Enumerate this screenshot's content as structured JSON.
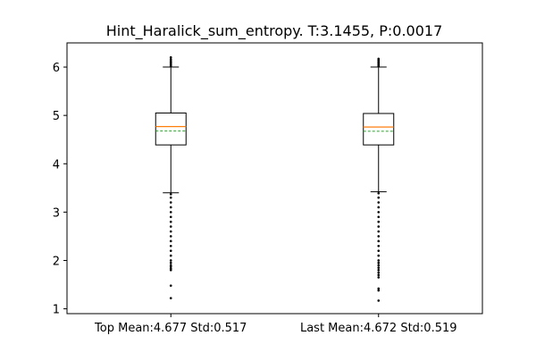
{
  "chart_data": {
    "type": "box",
    "title": "Hint_Haralick_sum_entropy. T:3.1455, P:0.0017",
    "xlabel": "",
    "ylabel": "",
    "ylim": [
      0.9,
      6.5
    ],
    "yticks": [
      1,
      2,
      3,
      4,
      5,
      6
    ],
    "grid": false,
    "categories": [
      "Top Mean:4.677 Std:0.517",
      "Last Mean:4.672 Std:0.519"
    ],
    "series": [
      {
        "whisker_low": 3.4,
        "q1": 4.39,
        "median": 4.77,
        "mean": 4.677,
        "q3": 5.05,
        "whisker_high": 6.0,
        "outliers_high": [
          6.02,
          6.05,
          6.08,
          6.1,
          6.13,
          6.16,
          6.2
        ],
        "outliers_low": [
          3.37,
          3.3,
          3.2,
          3.1,
          3.0,
          2.9,
          2.8,
          2.7,
          2.6,
          2.5,
          2.4,
          2.3,
          2.2,
          2.1,
          2.0,
          1.95,
          1.9,
          1.87,
          1.83,
          1.8,
          1.48,
          1.22
        ]
      },
      {
        "whisker_low": 3.42,
        "q1": 4.39,
        "median": 4.76,
        "mean": 4.672,
        "q3": 5.04,
        "whisker_high": 6.0,
        "outliers_high": [
          6.02,
          6.05,
          6.08,
          6.11,
          6.14,
          6.17
        ],
        "outliers_low": [
          3.39,
          3.3,
          3.2,
          3.1,
          3.0,
          2.9,
          2.8,
          2.7,
          2.6,
          2.5,
          2.4,
          2.3,
          2.2,
          2.1,
          2.0,
          1.95,
          1.9,
          1.85,
          1.8,
          1.75,
          1.7,
          1.65,
          1.42,
          1.38,
          1.17
        ]
      }
    ],
    "colors": {
      "box": "#000000",
      "median": "#ff7f0e",
      "mean": "#2ca02c",
      "outlier": "#000000"
    }
  }
}
